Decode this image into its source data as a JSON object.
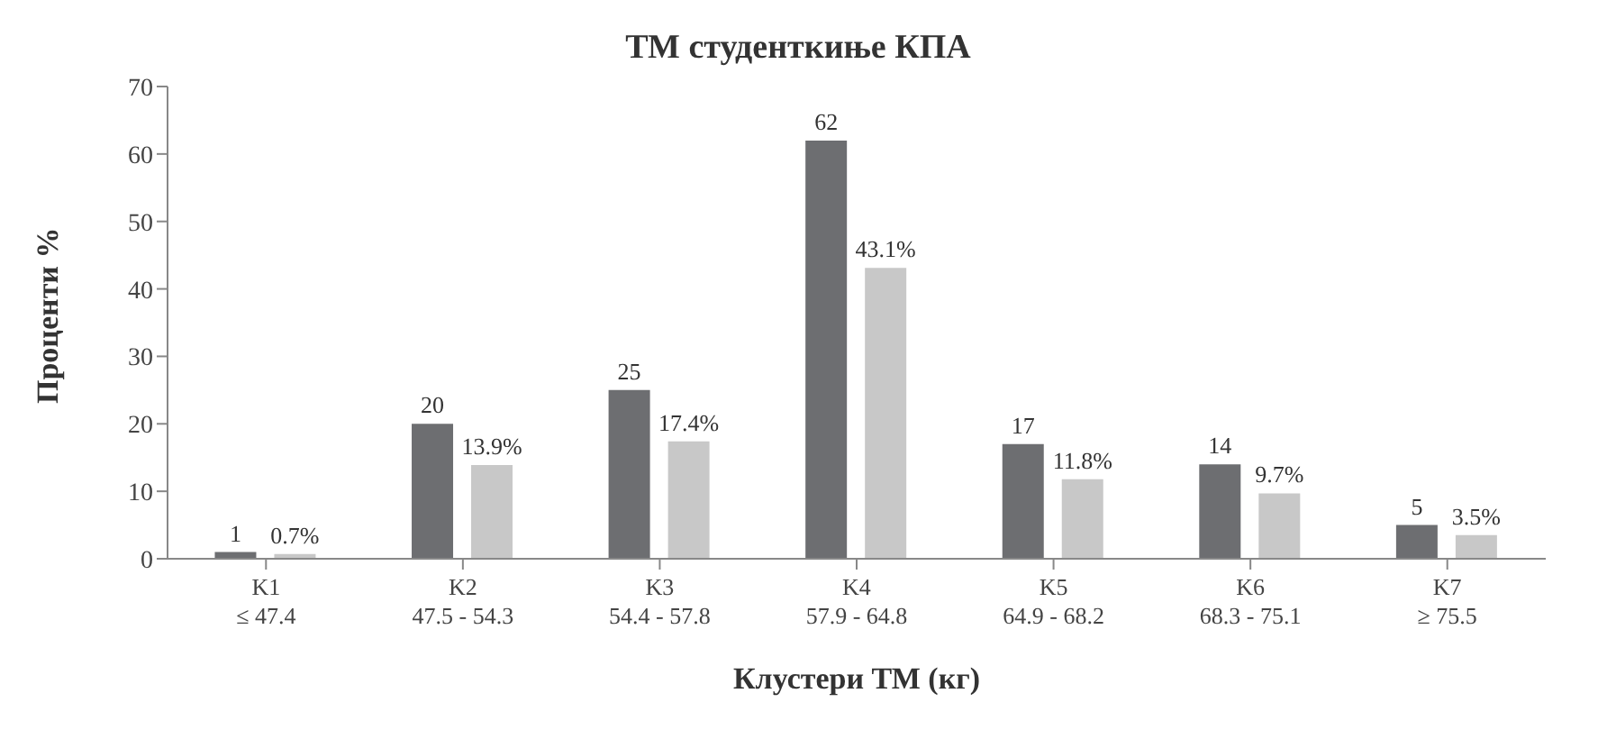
{
  "chart_data": {
    "type": "bar",
    "title": "ТМ студенткиње КПА",
    "xlabel": "Клустери ТМ (кг)",
    "ylabel": "Проценти %",
    "categories": [
      "K1\n≤ 47.4",
      "K2\n47.5 - 54.3",
      "K3\n54.4 - 57.8",
      "K4\n57.9 - 64.8",
      "K5\n64.9 - 68.2",
      "K6\n68.3 - 75.1",
      "K7\n≥ 75.5"
    ],
    "series": [
      {
        "color": "#6d6e71",
        "values": [
          1,
          20,
          25,
          62,
          17,
          14,
          5
        ],
        "value_labels": [
          "1",
          "20",
          "25",
          "62",
          "17",
          "14",
          "5"
        ]
      },
      {
        "color": "#c8c8c8",
        "values": [
          0.7,
          13.9,
          17.4,
          43.1,
          11.8,
          9.7,
          3.5
        ],
        "value_labels": [
          "0.7%",
          "13.9%",
          "17.4%",
          "43.1%",
          "11.8%",
          "9.7%",
          "3.5%"
        ]
      }
    ],
    "ylim": [
      0,
      70
    ],
    "yticks": [
      0,
      10,
      20,
      30,
      40,
      50,
      60,
      70
    ],
    "grid": false,
    "legend": false
  }
}
